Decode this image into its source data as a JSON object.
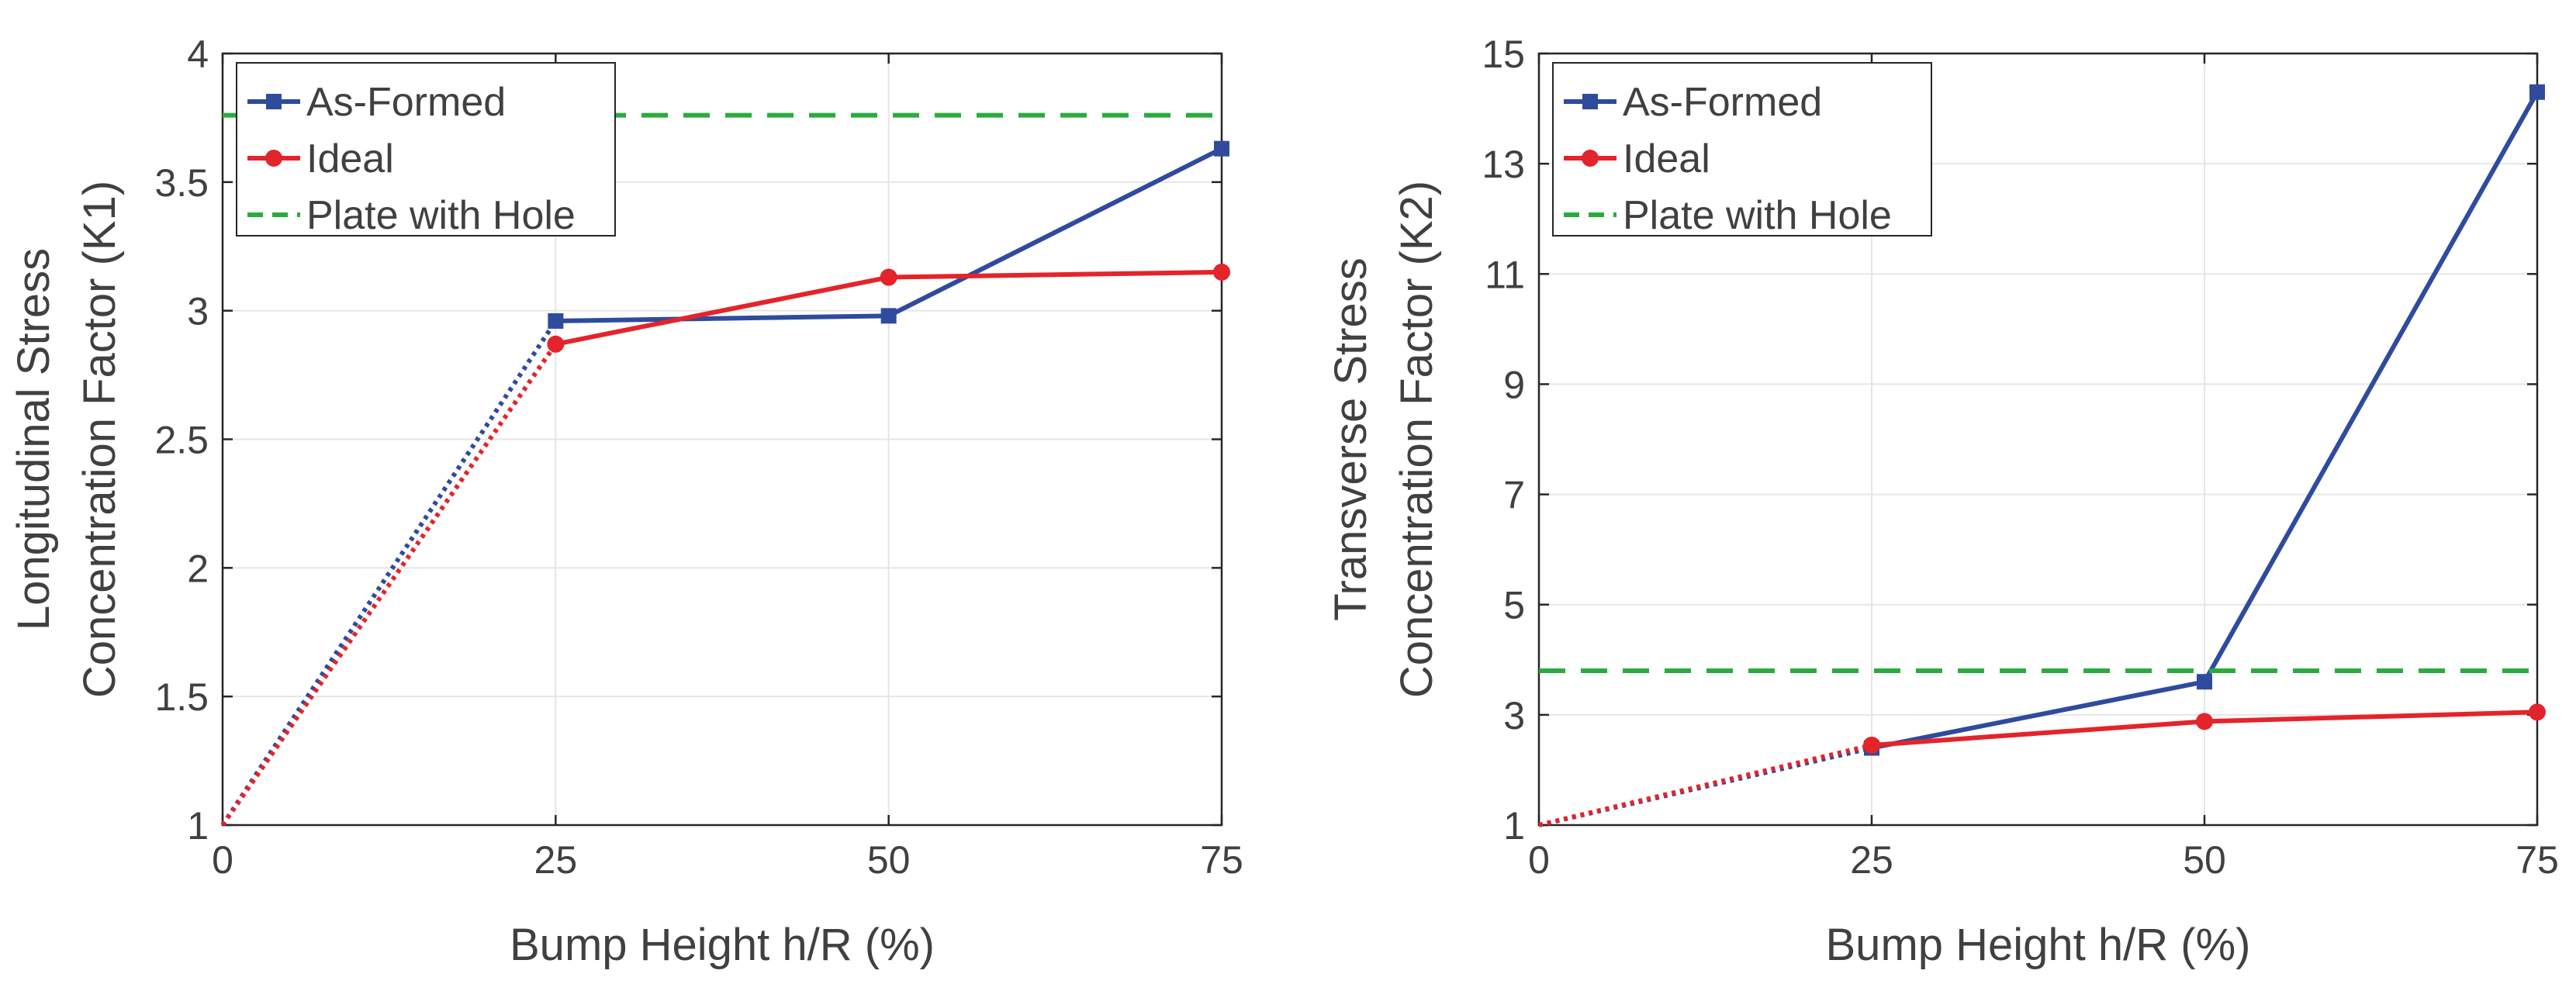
{
  "chart_data": [
    {
      "type": "line",
      "title": "",
      "xlabel": "Bump Height h/R (%)",
      "ylabel_lines": [
        "Longitudinal Stress",
        "Concentration Factor (K1)"
      ],
      "xlim": [
        0,
        75
      ],
      "ylim": [
        1,
        4
      ],
      "xticks": [
        0,
        25,
        50,
        75
      ],
      "yticks": [
        1,
        1.5,
        2,
        2.5,
        3,
        3.5,
        4
      ],
      "ytick_labels": [
        "1",
        "1.5",
        "2",
        "2.5",
        "3",
        "3.5",
        "4"
      ],
      "grid": true,
      "legend_position": "top-left",
      "series": [
        {
          "name": "As-Formed",
          "color": "#2e4b9e",
          "x": [
            25,
            50,
            75
          ],
          "values": [
            2.96,
            2.98,
            3.63
          ],
          "marker": "square",
          "extrapolation": {
            "x": [
              0,
              25
            ],
            "values": [
              1,
              2.96
            ],
            "style": "dotted"
          }
        },
        {
          "name": "Ideal",
          "color": "#e3242b",
          "x": [
            25,
            50,
            75
          ],
          "values": [
            2.87,
            3.13,
            3.15
          ],
          "marker": "circle",
          "extrapolation": {
            "x": [
              0,
              25
            ],
            "values": [
              1,
              2.87
            ],
            "style": "dotted"
          }
        },
        {
          "name": "Plate with Hole",
          "color": "#2aab3f",
          "style": "dashed",
          "constant": 3.76
        }
      ]
    },
    {
      "type": "line",
      "title": "",
      "xlabel": "Bump Height h/R (%)",
      "ylabel_lines": [
        "Transverse Stress",
        "Concentration Factor (K2)"
      ],
      "xlim": [
        0,
        75
      ],
      "ylim": [
        1,
        15
      ],
      "xticks": [
        0,
        25,
        50,
        75
      ],
      "yticks": [
        1,
        3,
        5,
        7,
        9,
        11,
        13,
        15
      ],
      "ytick_labels": [
        "1",
        "3",
        "5",
        "7",
        "9",
        "11",
        "13",
        "15"
      ],
      "grid": true,
      "legend_position": "top-left",
      "series": [
        {
          "name": "As-Formed",
          "color": "#2e4b9e",
          "x": [
            25,
            50,
            75
          ],
          "values": [
            2.4,
            3.6,
            14.3
          ],
          "marker": "square",
          "extrapolation": {
            "x": [
              0,
              25
            ],
            "values": [
              1,
              2.4
            ],
            "style": "dotted"
          }
        },
        {
          "name": "Ideal",
          "color": "#e3242b",
          "x": [
            25,
            50,
            75
          ],
          "values": [
            2.45,
            2.88,
            3.05
          ],
          "marker": "circle",
          "extrapolation": {
            "x": [
              0,
              25
            ],
            "values": [
              1,
              2.45
            ],
            "style": "dotted"
          }
        },
        {
          "name": "Plate with Hole",
          "color": "#2aab3f",
          "style": "dashed",
          "constant": 3.8
        }
      ]
    }
  ]
}
